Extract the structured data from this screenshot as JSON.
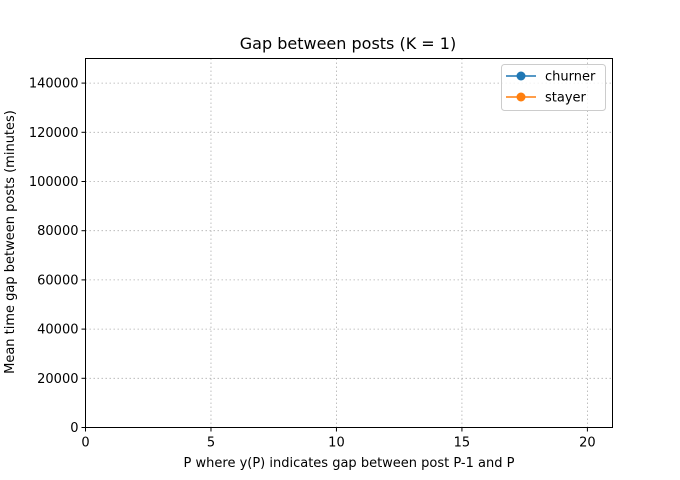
{
  "chart_data": {
    "type": "line",
    "title": "Gap between posts (K = 1)",
    "xlabel": "P where y(P) indicates gap between post P-1 and P",
    "ylabel": "Mean time gap between posts (minutes)",
    "xlim": [
      0,
      21
    ],
    "ylim": [
      0,
      150000
    ],
    "xticks": [
      0,
      5,
      10,
      15,
      20
    ],
    "yticks": [
      0,
      20000,
      40000,
      60000,
      80000,
      100000,
      120000,
      140000
    ],
    "xtick_labels": [
      "0",
      "5",
      "10",
      "15",
      "20"
    ],
    "ytick_labels": [
      "0",
      "20000",
      "40000",
      "60000",
      "80000",
      "100000",
      "120000",
      "140000"
    ],
    "grid": true,
    "legend_position": "top-right",
    "series": [
      {
        "name": "churner",
        "color": "#1f77b4",
        "marker": "circle",
        "x": [],
        "y": []
      },
      {
        "name": "stayer",
        "color": "#ff7f0e",
        "marker": "circle",
        "x": [],
        "y": []
      }
    ]
  }
}
